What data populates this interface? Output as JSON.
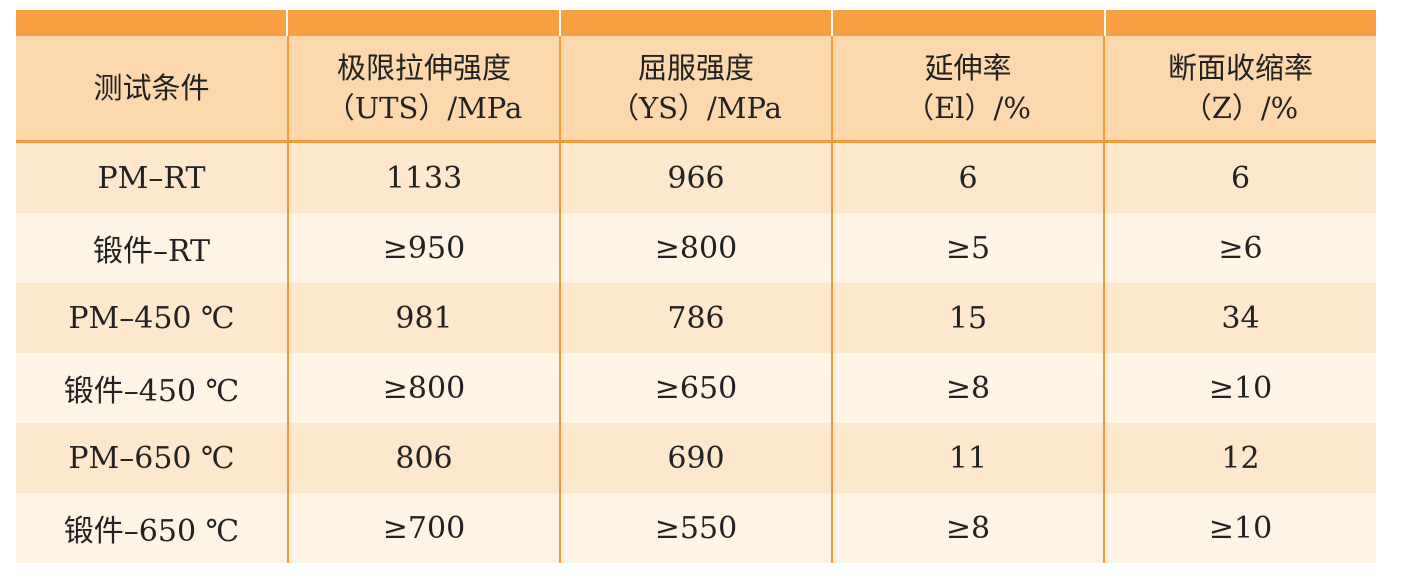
{
  "header": [
    {
      "line1": "测试条件",
      "line2": ""
    },
    {
      "line1": "极限拉伸强度",
      "line2": "（UTS）/MPa"
    },
    {
      "line1": "屈服强度",
      "line2": "（YS）/MPa"
    },
    {
      "line1": "延伸率",
      "line2": "（El）/%"
    },
    {
      "line1": "断面收缩率",
      "line2": "（Z）/%"
    }
  ],
  "rows": [
    [
      "PM–RT",
      "1133",
      "966",
      "6",
      "6"
    ],
    [
      "锻件–RT",
      "≥950",
      "≥800",
      "≥5",
      "≥6"
    ],
    [
      "PM–450 ℃",
      "981",
      "786",
      "15",
      "34"
    ],
    [
      "锻件–450 ℃",
      "≥800",
      "≥650",
      "≥8",
      "≥10"
    ],
    [
      "PM–650 ℃",
      "806",
      "690",
      "11",
      "12"
    ],
    [
      "锻件–650 ℃",
      "≥700",
      "≥550",
      "≥8",
      "≥10"
    ]
  ],
  "colors": {
    "header_band": "#f7a043",
    "header_bg": "#fcd8ac",
    "row_odd": "#fde7cd",
    "row_even": "#fef4e6",
    "border": "#f49a3a"
  }
}
